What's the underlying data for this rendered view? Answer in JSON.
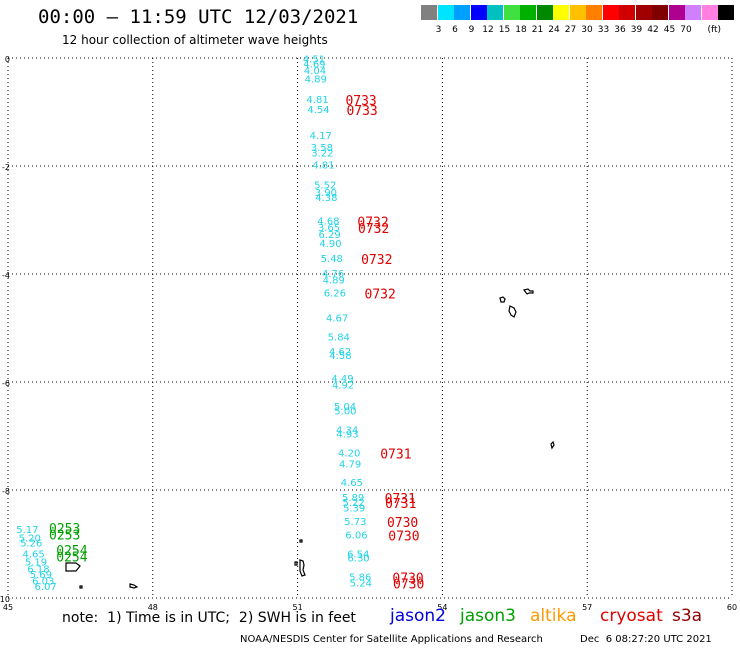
{
  "header": {
    "title": "00:00 — 11:59 UTC 12/03/2021",
    "subtitle": "12 hour collection of altimeter wave heights"
  },
  "legend": {
    "colors": [
      "#808080",
      "#00e5ff",
      "#00a0ff",
      "#0000ff",
      "#00c0c0",
      "#40e040",
      "#00b000",
      "#008800",
      "#ffff00",
      "#ffc000",
      "#ff8000",
      "#ff0000",
      "#d00000",
      "#a00000",
      "#800000",
      "#b00090",
      "#d080ff",
      "#ff80e0",
      "#000000"
    ],
    "labels": [
      "3",
      "6",
      "9",
      "12",
      "15",
      "18",
      "21",
      "24",
      "27",
      "30",
      "33",
      "36",
      "39",
      "42",
      "45",
      "70"
    ],
    "unit": "(ft)"
  },
  "map": {
    "x_ticks": [
      "45",
      "48",
      "51",
      "54",
      "57",
      "60"
    ],
    "y_ticks": [
      "0",
      "-2",
      "-4",
      "-6",
      "-8",
      "-10"
    ],
    "lon_range": [
      45,
      60
    ],
    "lat_range": [
      -10,
      0
    ]
  },
  "track_main": {
    "heights": [
      {
        "v": "4.51",
        "lat": -0.08
      },
      {
        "v": "4.69",
        "lat": -0.18
      },
      {
        "v": "4.04",
        "lat": -0.3
      },
      {
        "v": "4.89",
        "lat": -0.45
      },
      {
        "v": "4.81",
        "lat": -0.83
      },
      {
        "v": "4.54",
        "lat": -1.02
      },
      {
        "v": "4.17",
        "lat": -1.5
      },
      {
        "v": "3.58",
        "lat": -1.72
      },
      {
        "v": "3.22",
        "lat": -1.82
      },
      {
        "v": "4.81",
        "lat": -2.05
      },
      {
        "v": "5.52",
        "lat": -2.42
      },
      {
        "v": "3.90",
        "lat": -2.56
      },
      {
        "v": "4.38",
        "lat": -2.65
      },
      {
        "v": "4.68",
        "lat": -3.08
      },
      {
        "v": "3.65",
        "lat": -3.2
      },
      {
        "v": "6.29",
        "lat": -3.33
      },
      {
        "v": "4.90",
        "lat": -3.5
      },
      {
        "v": "5.48",
        "lat": -3.78
      },
      {
        "v": "4.76",
        "lat": -4.06
      },
      {
        "v": "4.89",
        "lat": -4.18
      },
      {
        "v": "6.26",
        "lat": -4.42
      },
      {
        "v": "4.67",
        "lat": -4.88
      },
      {
        "v": "5.84",
        "lat": -5.23
      },
      {
        "v": "4.62",
        "lat": -5.5
      },
      {
        "v": "4.58",
        "lat": -5.57
      },
      {
        "v": "4.49",
        "lat": -6.0
      },
      {
        "v": "4.92",
        "lat": -6.12
      },
      {
        "v": "5.04",
        "lat": -6.52
      },
      {
        "v": "5.00",
        "lat": -6.6
      },
      {
        "v": "4.34",
        "lat": -6.95
      },
      {
        "v": "4.93",
        "lat": -7.03
      },
      {
        "v": "4.20",
        "lat": -7.38
      },
      {
        "v": "4.79",
        "lat": -7.58
      },
      {
        "v": "4.65",
        "lat": -7.93
      },
      {
        "v": "5.89",
        "lat": -8.2
      },
      {
        "v": "5.22",
        "lat": -8.3
      },
      {
        "v": "5.39",
        "lat": -8.4
      },
      {
        "v": "5.73",
        "lat": -8.65
      },
      {
        "v": "6.06",
        "lat": -8.9
      },
      {
        "v": "6.54",
        "lat": -9.25
      },
      {
        "v": "6.30",
        "lat": -9.32
      },
      {
        "v": "5.86",
        "lat": -9.68
      },
      {
        "v": "5.24",
        "lat": -9.79
      }
    ],
    "passes": [
      {
        "t": "0733",
        "lat": -0.83
      },
      {
        "t": "0733",
        "lat": -1.02
      },
      {
        "t": "0732",
        "lat": -3.08
      },
      {
        "t": "0732",
        "lat": -3.2
      },
      {
        "t": "0732",
        "lat": -3.78
      },
      {
        "t": "0732",
        "lat": -4.42
      },
      {
        "t": "0731",
        "lat": -7.38
      },
      {
        "t": "0731",
        "lat": -8.2
      },
      {
        "t": "0731",
        "lat": -8.3
      },
      {
        "t": "0730",
        "lat": -8.65
      },
      {
        "t": "0730",
        "lat": -8.9
      },
      {
        "t": "0730",
        "lat": -9.68
      },
      {
        "t": "0730",
        "lat": -9.79
      }
    ]
  },
  "track_left": {
    "heights": [
      {
        "v": "5.17",
        "lon": 45.17,
        "lat": -8.8
      },
      {
        "v": "5.20",
        "lon": 45.22,
        "lat": -8.95
      },
      {
        "v": "5.26",
        "lon": 45.25,
        "lat": -9.05
      },
      {
        "v": "4.65",
        "lon": 45.3,
        "lat": -9.25
      },
      {
        "v": "5.19",
        "lon": 45.35,
        "lat": -9.4
      },
      {
        "v": "6.18",
        "lon": 45.4,
        "lat": -9.53
      },
      {
        "v": "5.69",
        "lon": 45.45,
        "lat": -9.63
      },
      {
        "v": "6.03",
        "lon": 45.5,
        "lat": -9.75
      },
      {
        "v": "6.07",
        "lon": 45.55,
        "lat": -9.85
      }
    ],
    "passes": [
      {
        "t": "0253",
        "lon": 45.85,
        "lat": -8.8
      },
      {
        "t": "0253",
        "lon": 45.85,
        "lat": -8.92
      },
      {
        "t": "0254",
        "lon": 46.0,
        "lat": -9.2
      },
      {
        "t": "0254",
        "lon": 46.0,
        "lat": -9.32
      }
    ]
  },
  "note": "note:  1) Time is in UTC;  2) SWH is in feet",
  "satellites": [
    {
      "name": "jason2",
      "color": "#0000e0"
    },
    {
      "name": "jason3",
      "color": "#00a000"
    },
    {
      "name": "altika",
      "color": "#ff9900"
    },
    {
      "name": "cryosat",
      "color": "#e00000"
    },
    {
      "name": "s3a",
      "color": "#900000"
    }
  ],
  "footer": {
    "agency": "NOAA/NESDIS Center for Satellite Applications and Research",
    "stamp": "Dec  6 08:27:20 UTC 2021"
  }
}
